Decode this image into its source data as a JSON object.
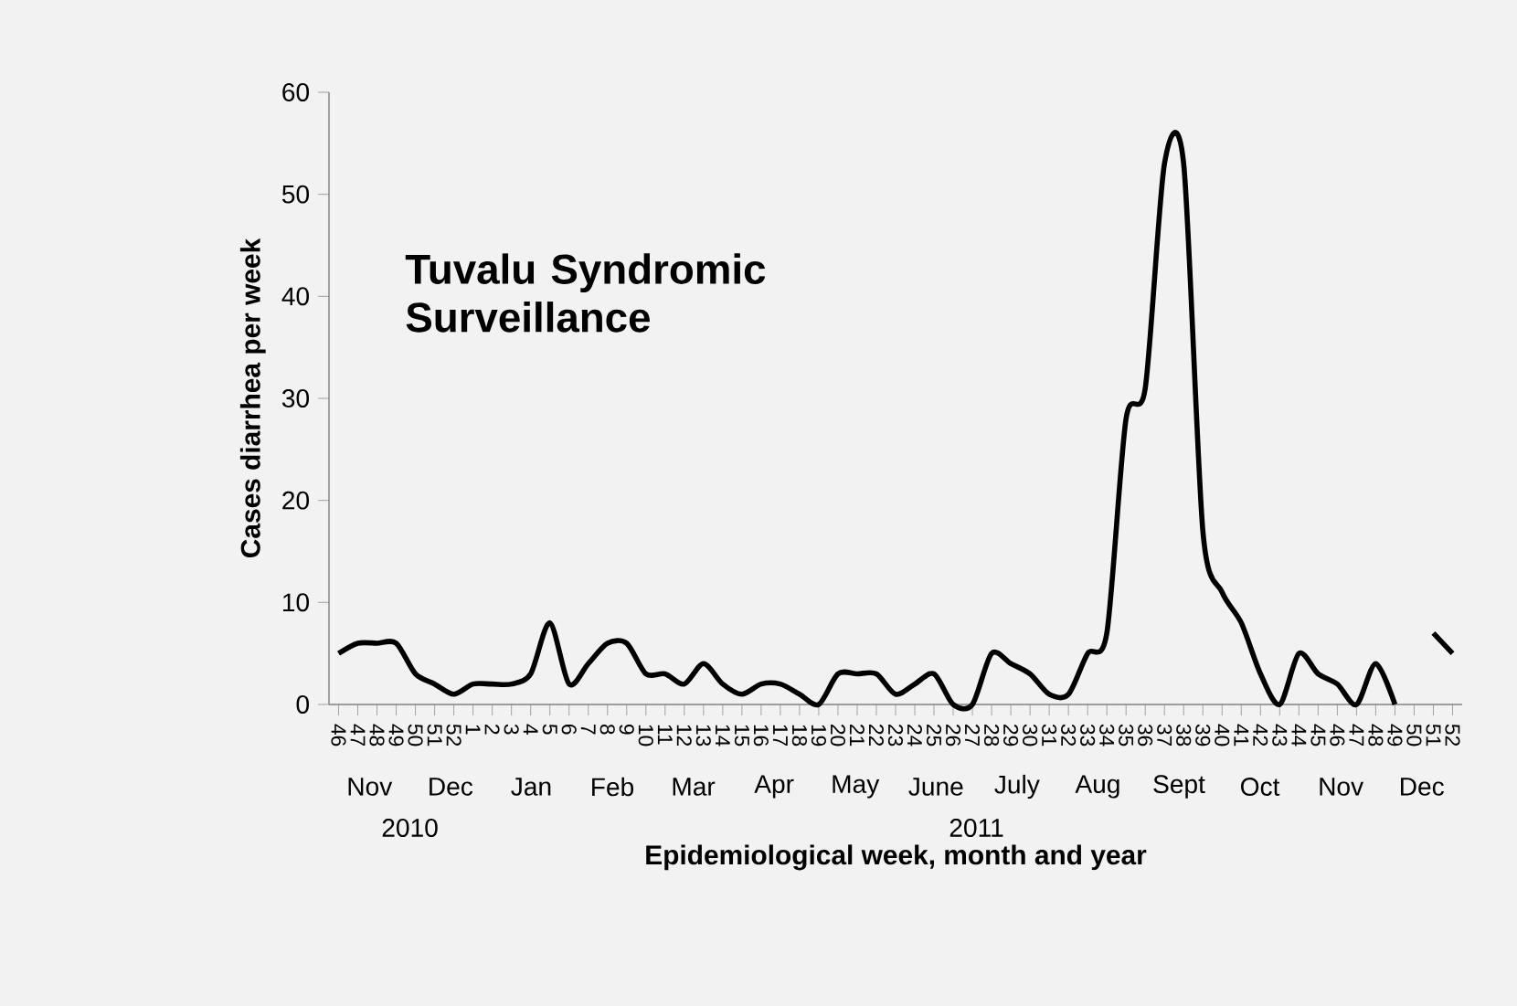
{
  "chart_data": {
    "type": "line",
    "title": "Tuvalu Syndromic Surveillance",
    "xlabel": "Epidemiological week, month and year",
    "ylabel": "Cases diarrhea per week",
    "categories": [
      "46",
      "47",
      "48",
      "49",
      "50",
      "51",
      "52",
      "1",
      "2",
      "3",
      "4",
      "5",
      "6",
      "7",
      "8",
      "9",
      "10",
      "11",
      "12",
      "13",
      "14",
      "15",
      "16",
      "17",
      "18",
      "19",
      "20",
      "21",
      "22",
      "23",
      "24",
      "25",
      "26",
      "27",
      "28",
      "29",
      "30",
      "31",
      "32",
      "33",
      "34",
      "35",
      "36",
      "37",
      "38",
      "39",
      "40",
      "41",
      "42",
      "43",
      "44",
      "45",
      "46",
      "47",
      "48",
      "49",
      "50",
      "51",
      "52"
    ],
    "series": [
      {
        "color": "#000000",
        "values": [
          5,
          6,
          6,
          6,
          3,
          2,
          1,
          2,
          2,
          2,
          3,
          8,
          2,
          4,
          6,
          6,
          3,
          3,
          2,
          4,
          2,
          1,
          2,
          2,
          1,
          0,
          3,
          3,
          3,
          1,
          2,
          3,
          0,
          0,
          5,
          4,
          3,
          1,
          1,
          5,
          7,
          28,
          31,
          53,
          53,
          17,
          11,
          8,
          3,
          0,
          5,
          3,
          2,
          0,
          4,
          0,
          null,
          7,
          5
        ]
      }
    ],
    "ylim": [
      0,
      60
    ],
    "yticks": [
      0,
      10,
      20,
      30,
      40,
      50,
      60
    ],
    "grid": false,
    "marker": "none",
    "line_style": "solid",
    "annotations": [
      "Nov",
      "Dec",
      "Jan",
      "Feb",
      "Mar",
      "Apr",
      "May",
      "June",
      "July",
      "Aug",
      "Sept",
      "Oct",
      "Nov",
      "Dec",
      "2010",
      "2011"
    ]
  }
}
